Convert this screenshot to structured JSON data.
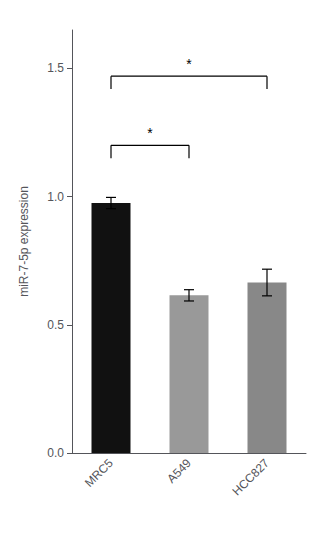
{
  "chart_data": {
    "type": "bar",
    "ylabel": "miR-7-5p expression",
    "categories": [
      "MRC5",
      "A549",
      "HCC827"
    ],
    "values": [
      0.975,
      0.615,
      0.665
    ],
    "errors": [
      0.022,
      0.022,
      0.052
    ],
    "colors": [
      "#111111",
      "#999999",
      "#888888"
    ],
    "ylim": [
      0,
      1.65
    ],
    "yticks": [
      {
        "value": 0,
        "label": "0.0"
      },
      0.5,
      {
        "value": 1,
        "label": "1.0"
      },
      1.5
    ],
    "grid": false,
    "annotations": [
      {
        "text": "*",
        "from": "MRC5",
        "to": "A549",
        "y": 1.2
      },
      {
        "text": "*",
        "from": "MRC5",
        "to": "HCC827",
        "y": 1.47
      }
    ]
  }
}
